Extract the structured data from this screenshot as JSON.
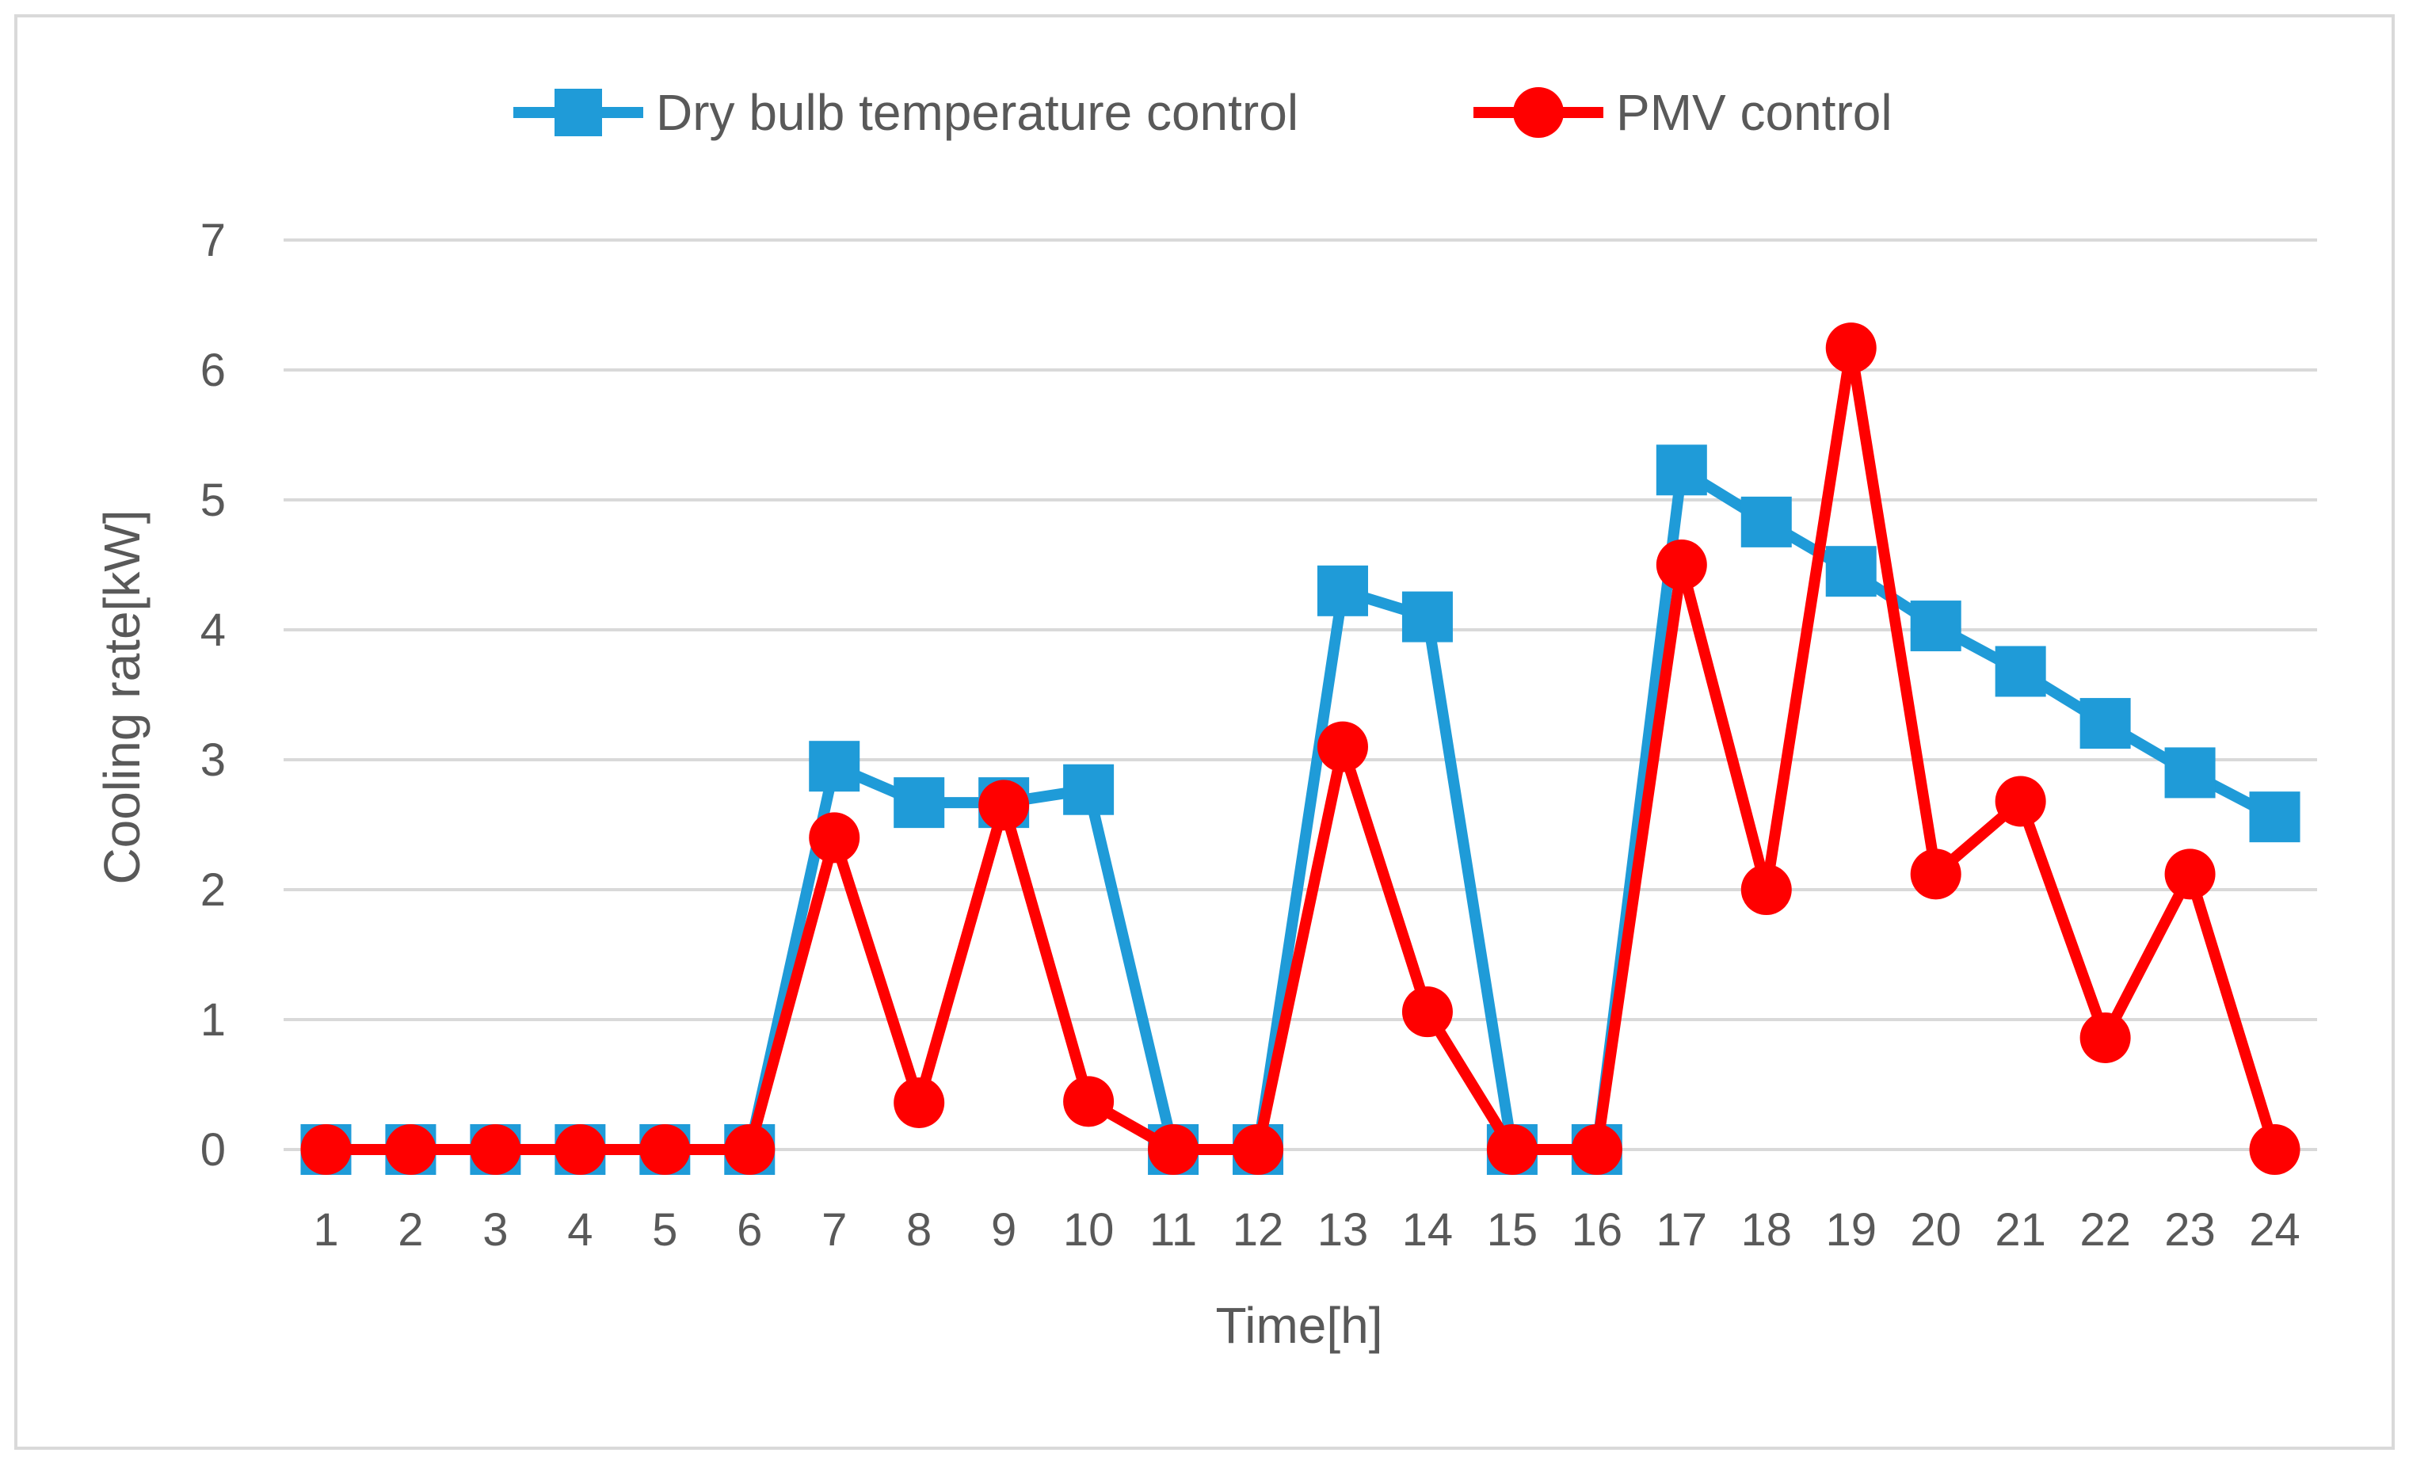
{
  "chart_data": {
    "type": "line",
    "title": "",
    "xlabel": "Time[h]",
    "ylabel": "Cooling rate[kW]",
    "ylim": [
      0,
      7
    ],
    "yticks": [
      0,
      1,
      2,
      3,
      4,
      5,
      6,
      7
    ],
    "grid": true,
    "legend_position": "top-center",
    "categories": [
      "1",
      "2",
      "3",
      "4",
      "5",
      "6",
      "7",
      "8",
      "9",
      "10",
      "11",
      "12",
      "13",
      "14",
      "15",
      "16",
      "17",
      "18",
      "19",
      "20",
      "21",
      "22",
      "23",
      "24"
    ],
    "series": [
      {
        "name": "Dry bulb temperature control",
        "color": "#1f9bd8",
        "marker": "square",
        "values": [
          0,
          0,
          0,
          0,
          0,
          0,
          2.95,
          2.67,
          2.67,
          2.77,
          0,
          0,
          4.3,
          4.1,
          0,
          0,
          5.23,
          4.83,
          4.45,
          4.03,
          3.68,
          3.28,
          2.9,
          2.56
        ]
      },
      {
        "name": "PMV control",
        "color": "#ff0000",
        "marker": "circle",
        "values": [
          0,
          0,
          0,
          0,
          0,
          0,
          2.4,
          0.36,
          2.65,
          0.37,
          0,
          0,
          3.1,
          1.06,
          0,
          0,
          4.5,
          2.0,
          6.17,
          2.12,
          2.68,
          0.86,
          2.12,
          0
        ]
      }
    ]
  }
}
